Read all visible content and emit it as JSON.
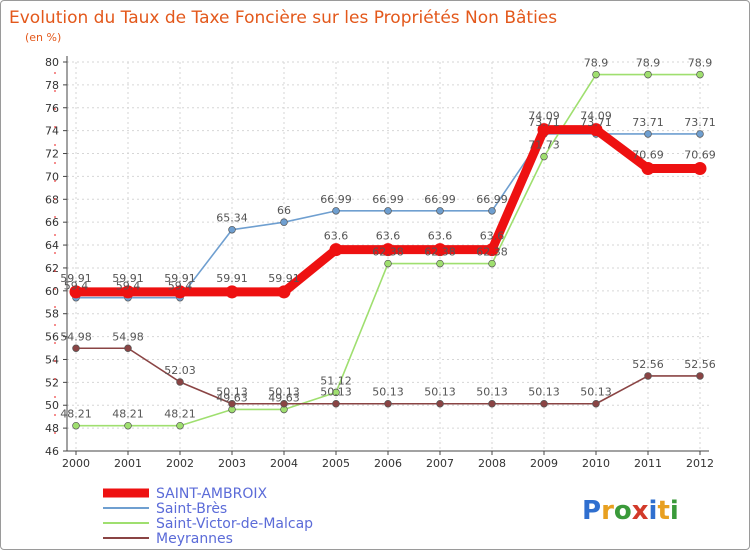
{
  "chart_data": {
    "type": "line",
    "title": "Evolution du Taux de Taxe Foncière sur les Propriétés Non Bâties",
    "ylabel": "(en %)",
    "xlabel": "",
    "ylim": [
      46,
      80
    ],
    "ystep": 2,
    "grid": true,
    "categories": [
      "2000",
      "2001",
      "2002",
      "2003",
      "2004",
      "2005",
      "2006",
      "2007",
      "2008",
      "2009",
      "2010",
      "2011",
      "2012"
    ],
    "series": [
      {
        "name": "SAINT-AMBROIX",
        "color": "#ee1111",
        "emphasis": true,
        "values": [
          59.91,
          59.91,
          59.91,
          59.91,
          59.91,
          63.6,
          63.6,
          63.6,
          63.6,
          74.09,
          74.09,
          70.69,
          70.69
        ],
        "labels": [
          "59.91",
          "59.91",
          "59.91",
          "59.91",
          "59.91",
          "63.6",
          "63.6",
          "63.6",
          "63.6",
          "74.09",
          "74.09",
          "70.69",
          "70.69"
        ]
      },
      {
        "name": "Saint-Brès",
        "color": "#6f9fd0",
        "values": [
          59.4,
          59.4,
          59.4,
          65.34,
          66,
          66.99,
          66.99,
          66.99,
          66.99,
          73.71,
          73.71,
          73.71,
          73.71
        ],
        "labels": [
          "59.4",
          "59.4",
          "59.4",
          "65.34",
          "66",
          "66.99",
          "66.99",
          "66.99",
          "66.99",
          "73.71",
          "73.71",
          "73.71",
          "73.71"
        ]
      },
      {
        "name": "Saint-Victor-de-Malcap",
        "color": "#9fdf6f",
        "values": [
          48.21,
          48.21,
          48.21,
          49.63,
          49.63,
          51.12,
          62.38,
          62.38,
          62.38,
          71.73,
          78.9,
          78.9,
          78.9
        ],
        "labels": [
          "48.21",
          "48.21",
          "48.21",
          "49.63",
          "49.63",
          "51.12",
          "62.38",
          "62.38",
          "62.38",
          "71.73",
          "78.9",
          "78.9",
          "78.9"
        ]
      },
      {
        "name": "Meyrannes",
        "color": "#8a4444",
        "values": [
          54.98,
          54.98,
          52.03,
          50.13,
          50.13,
          50.13,
          50.13,
          50.13,
          50.13,
          50.13,
          50.13,
          52.56,
          52.56
        ],
        "labels": [
          "54.98",
          "54.98",
          "52.03",
          "50.13",
          "50.13",
          "50.13",
          "50.13",
          "50.13",
          "50.13",
          "50.13",
          "50.13",
          "52.56",
          "52.56"
        ]
      }
    ]
  },
  "branding": {
    "logo_letters": [
      "P",
      "r",
      "o",
      "x",
      "i",
      "t",
      "i"
    ],
    "logo_colors": [
      "#2f6fcf",
      "#e8a020",
      "#3a9a3a",
      "#d23a2a",
      "#2f6fcf",
      "#e8a020",
      "#3a9a3a"
    ]
  }
}
